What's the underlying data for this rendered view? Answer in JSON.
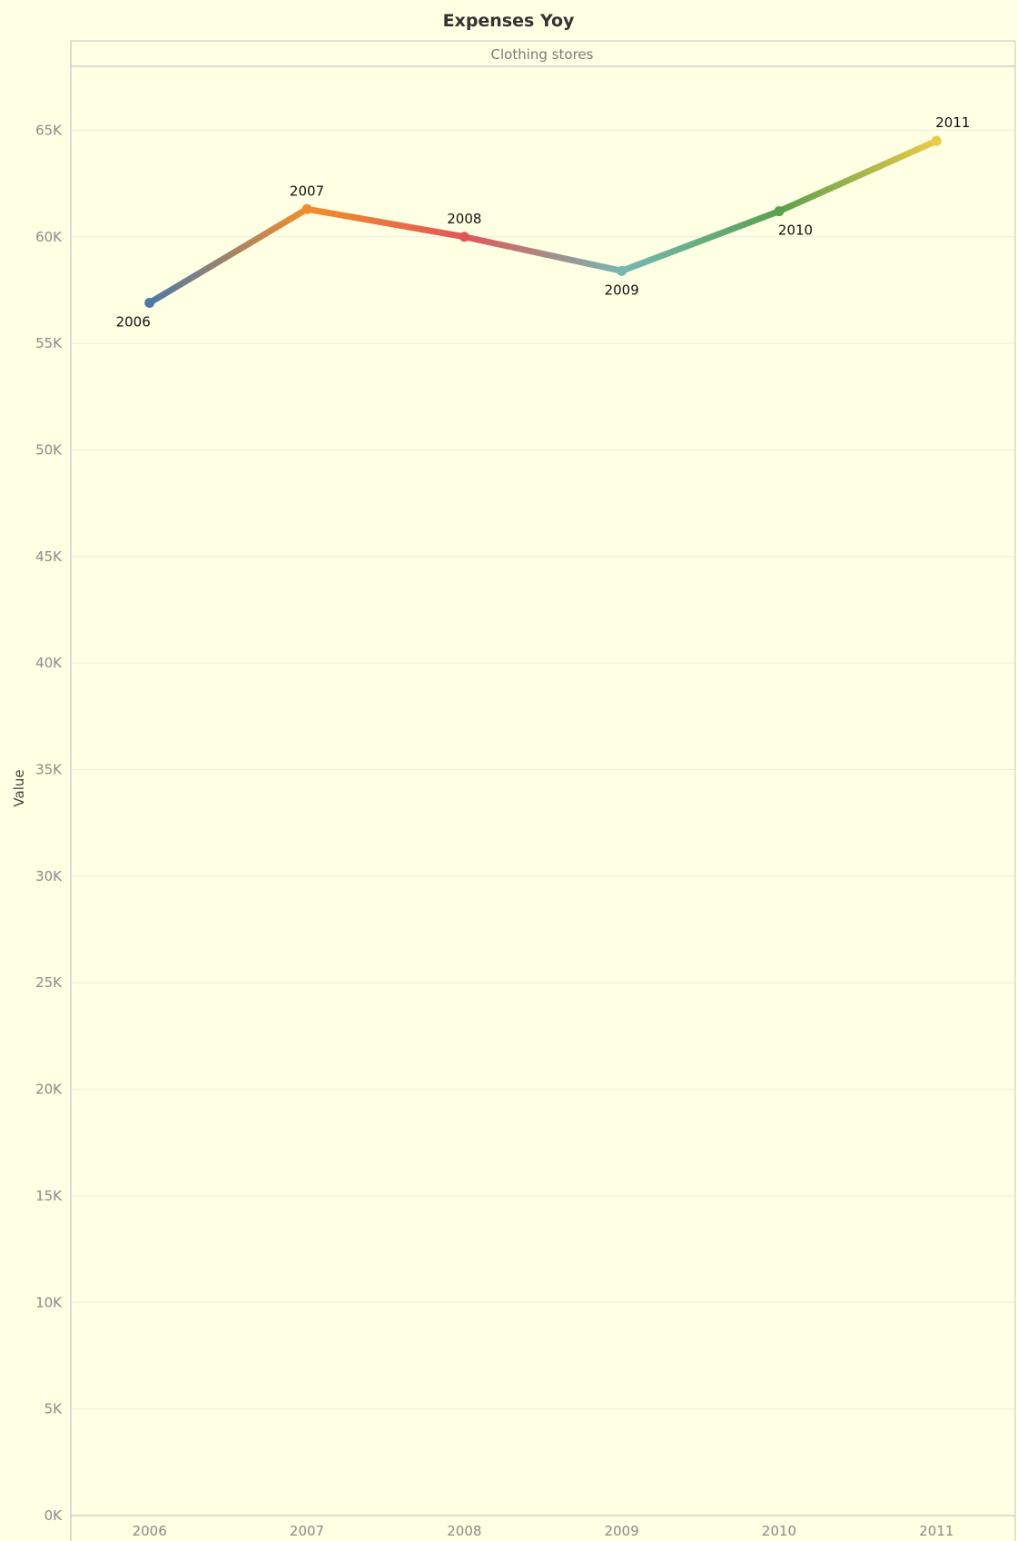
{
  "chart_data": {
    "type": "line",
    "title": "Expenses Yoy",
    "panel_label": "Clothing stores",
    "xlabel": "",
    "ylabel": "Value",
    "categories": [
      "2006",
      "2007",
      "2008",
      "2009",
      "2010",
      "2011"
    ],
    "series": [
      {
        "values": [
          56900,
          61300,
          60000,
          58400,
          61200,
          64500
        ],
        "point_colors": [
          "#4e79a7",
          "#f28e2b",
          "#e15759",
          "#76b7b2",
          "#59a14f",
          "#edc948"
        ],
        "point_labels": [
          "2006",
          "2007",
          "2008",
          "2009",
          "2010",
          "2011"
        ],
        "label_positions": [
          "below",
          "above",
          "above",
          "below",
          "below",
          "above"
        ]
      }
    ],
    "ylim": [
      0,
      68000
    ],
    "yticks": [
      0,
      5000,
      10000,
      15000,
      20000,
      25000,
      30000,
      35000,
      40000,
      45000,
      50000,
      55000,
      60000,
      65000
    ],
    "ytick_labels": [
      "0K",
      "5K",
      "10K",
      "15K",
      "20K",
      "25K",
      "30K",
      "35K",
      "40K",
      "45K",
      "50K",
      "55K",
      "60K",
      "65K"
    ],
    "grid": true,
    "legend": "none",
    "background": "#ffffe3",
    "gridline_color": "#ececdf",
    "axis_color": "#c8c8c8"
  }
}
